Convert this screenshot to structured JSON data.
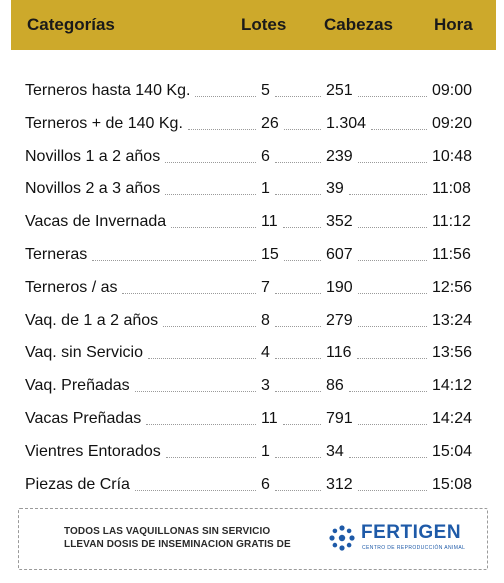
{
  "header": {
    "categoria": "Categorías",
    "lotes": "Lotes",
    "cabezas": "Cabezas",
    "hora": "Hora"
  },
  "rows": [
    {
      "categoria": "Terneros hasta 140 Kg.",
      "lotes": "5",
      "cabezas": "251",
      "hora": "09:00"
    },
    {
      "categoria": "Terneros + de 140 Kg.",
      "lotes": "26",
      "cabezas": "1.304",
      "hora": "09:20"
    },
    {
      "categoria": "Novillos 1 a 2 años",
      "lotes": "6",
      "cabezas": "239",
      "hora": "10:48"
    },
    {
      "categoria": "Novillos 2 a 3 años",
      "lotes": "1",
      "cabezas": "39",
      "hora": "11:08"
    },
    {
      "categoria": "Vacas de Invernada",
      "lotes": "11",
      "cabezas": "352",
      "hora": "11:12"
    },
    {
      "categoria": "Terneras",
      "lotes": "15",
      "cabezas": "607",
      "hora": "11:56"
    },
    {
      "categoria": "Terneros / as",
      "lotes": "7",
      "cabezas": "190",
      "hora": "12:56"
    },
    {
      "categoria": "Vaq. de 1 a 2 años",
      "lotes": "8",
      "cabezas": "279",
      "hora": "13:24"
    },
    {
      "categoria": "Vaq. sin Servicio",
      "lotes": "4",
      "cabezas": "116",
      "hora": "13:56"
    },
    {
      "categoria": "Vaq. Preñadas",
      "lotes": "3",
      "cabezas": "86",
      "hora": "14:12"
    },
    {
      "categoria": "Vacas Preñadas",
      "lotes": "11",
      "cabezas": "791",
      "hora": "14:24"
    },
    {
      "categoria": "Vientres Entorados",
      "lotes": "1",
      "cabezas": "34",
      "hora": "15:04"
    },
    {
      "categoria": "Piezas de Cría",
      "lotes": "6",
      "cabezas": "312",
      "hora": "15:08"
    }
  ],
  "promo": {
    "line1": "TODOS LAS VAQUILLONAS SIN SERVICIO",
    "line2": "LLEVAN DOSIS DE INSEMINACION GRATIS DE",
    "logo_name": "FERTIGEN",
    "logo_sub": "CENTRO DE REPRODUCCIÓN ANIMAL",
    "logo_icon": "dots-circle-icon"
  },
  "colors": {
    "header_bg": "#cda92b",
    "brand_blue": "#1e5aa8"
  }
}
